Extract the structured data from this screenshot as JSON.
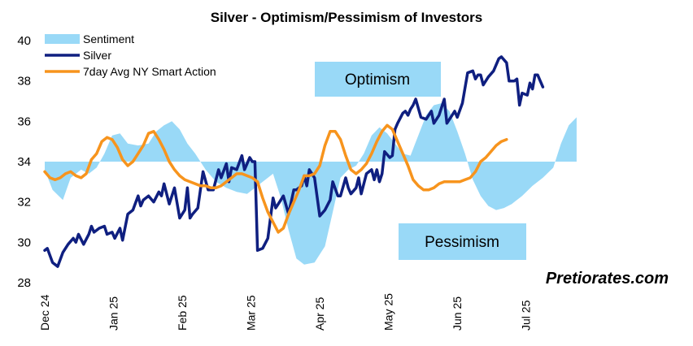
{
  "chart_data": {
    "type": "line",
    "title": "Silver - Optimism/Pessimism of Investors",
    "ylim": [
      28,
      40
    ],
    "y_ticks": [
      28,
      30,
      32,
      34,
      36,
      38,
      40
    ],
    "baseline": 34,
    "x_range": [
      0,
      232
    ],
    "x_ticks": [
      {
        "label": "Dec 24",
        "x": 0
      },
      {
        "label": "Jan 25",
        "x": 26.5
      },
      {
        "label": "Feb 25",
        "x": 53
      },
      {
        "label": "Mar 25",
        "x": 79.5
      },
      {
        "label": "Apr 25",
        "x": 106
      },
      {
        "label": "May 25",
        "x": 132.5
      },
      {
        "label": "Jun 25",
        "x": 159
      },
      {
        "label": "Jul 25",
        "x": 185.5
      }
    ],
    "legend": [
      "Sentiment",
      "Silver",
      "7day Avg NY Smart Action"
    ],
    "colors": {
      "sentiment": "#99D9F7",
      "silver": "#0F1F80",
      "smart": "#F7941D",
      "box": "#99D9F7"
    },
    "annotations": {
      "optimism": "Optimism",
      "pessimism": "Pessimism"
    },
    "watermark": "Pretiorates.com",
    "series": [
      {
        "name": "Sentiment",
        "kind": "area",
        "points": [
          [
            0,
            33.6
          ],
          [
            3,
            32.6
          ],
          [
            7,
            32.1
          ],
          [
            10,
            33.2
          ],
          [
            14,
            33.6
          ],
          [
            17,
            33.4
          ],
          [
            20,
            33.7
          ],
          [
            23,
            34.4
          ],
          [
            26,
            35.3
          ],
          [
            29,
            35.4
          ],
          [
            32,
            34.9
          ],
          [
            36,
            34.8
          ],
          [
            40,
            34.9
          ],
          [
            43,
            35.5
          ],
          [
            46,
            35.8
          ],
          [
            49,
            36.0
          ],
          [
            52,
            35.6
          ],
          [
            55,
            34.9
          ],
          [
            58,
            34.4
          ],
          [
            62,
            33.6
          ],
          [
            66,
            33.0
          ],
          [
            70,
            32.7
          ],
          [
            74,
            32.5
          ],
          [
            78,
            32.4
          ],
          [
            82,
            32.8
          ],
          [
            86,
            33.2
          ],
          [
            88,
            33.4
          ],
          [
            91,
            32.2
          ],
          [
            94,
            30.6
          ],
          [
            97,
            29.2
          ],
          [
            100,
            28.9
          ],
          [
            104,
            29.0
          ],
          [
            108,
            29.8
          ],
          [
            111,
            31.5
          ],
          [
            114,
            33.2
          ],
          [
            117,
            33.6
          ],
          [
            120,
            33.8
          ],
          [
            123,
            34.4
          ],
          [
            126,
            35.3
          ],
          [
            129,
            35.7
          ],
          [
            132,
            35.4
          ],
          [
            135,
            34.9
          ],
          [
            138,
            34.4
          ],
          [
            141,
            34.3
          ],
          [
            144,
            35.3
          ],
          [
            147,
            36.3
          ],
          [
            150,
            36.8
          ],
          [
            153,
            36.9
          ],
          [
            156,
            36.5
          ],
          [
            159,
            35.5
          ],
          [
            162,
            34.4
          ],
          [
            165,
            33.1
          ],
          [
            168,
            32.3
          ],
          [
            171,
            31.8
          ],
          [
            174,
            31.6
          ],
          [
            177,
            31.7
          ],
          [
            180,
            31.9
          ],
          [
            184,
            32.3
          ],
          [
            188,
            32.8
          ],
          [
            192,
            33.2
          ],
          [
            196,
            33.7
          ],
          [
            199,
            34.9
          ],
          [
            202,
            35.8
          ],
          [
            205,
            36.2
          ]
        ]
      },
      {
        "name": "Silver",
        "kind": "line",
        "points": [
          [
            0,
            29.6
          ],
          [
            1,
            29.7
          ],
          [
            3,
            29.0
          ],
          [
            5,
            28.8
          ],
          [
            7,
            29.5
          ],
          [
            9,
            29.9
          ],
          [
            11,
            30.2
          ],
          [
            12,
            30.0
          ],
          [
            13,
            30.4
          ],
          [
            15,
            29.9
          ],
          [
            17,
            30.4
          ],
          [
            18,
            30.8
          ],
          [
            19,
            30.5
          ],
          [
            21,
            30.7
          ],
          [
            23,
            30.8
          ],
          [
            24,
            30.4
          ],
          [
            26,
            30.5
          ],
          [
            27,
            30.2
          ],
          [
            29,
            30.7
          ],
          [
            30,
            30.1
          ],
          [
            32,
            31.4
          ],
          [
            34,
            31.6
          ],
          [
            36,
            32.3
          ],
          [
            37,
            31.8
          ],
          [
            38,
            32.1
          ],
          [
            40,
            32.3
          ],
          [
            42,
            32.0
          ],
          [
            44,
            32.5
          ],
          [
            45,
            32.3
          ],
          [
            46,
            32.9
          ],
          [
            48,
            31.9
          ],
          [
            50,
            32.7
          ],
          [
            52,
            31.2
          ],
          [
            54,
            31.6
          ],
          [
            55,
            32.7
          ],
          [
            56,
            31.2
          ],
          [
            57,
            31.4
          ],
          [
            59,
            31.7
          ],
          [
            61,
            33.5
          ],
          [
            63,
            32.6
          ],
          [
            65,
            32.6
          ],
          [
            67,
            33.6
          ],
          [
            68,
            33.2
          ],
          [
            70,
            33.9
          ],
          [
            71,
            33.0
          ],
          [
            72,
            33.7
          ],
          [
            74,
            33.6
          ],
          [
            76,
            34.3
          ],
          [
            77,
            33.6
          ],
          [
            79,
            34.2
          ],
          [
            80,
            34.0
          ],
          [
            81,
            34.0
          ],
          [
            82,
            29.6
          ],
          [
            84,
            29.7
          ],
          [
            86,
            30.2
          ],
          [
            88,
            32.2
          ],
          [
            89,
            31.7
          ],
          [
            90,
            31.9
          ],
          [
            92,
            32.3
          ],
          [
            94,
            31.4
          ],
          [
            96,
            32.6
          ],
          [
            97,
            32.6
          ],
          [
            99,
            32.8
          ],
          [
            100,
            33.3
          ],
          [
            101,
            32.8
          ],
          [
            102,
            33.6
          ],
          [
            104,
            33.2
          ],
          [
            106,
            31.3
          ],
          [
            108,
            31.6
          ],
          [
            110,
            32.1
          ],
          [
            111,
            33.0
          ],
          [
            113,
            32.3
          ],
          [
            114,
            32.3
          ],
          [
            116,
            33.2
          ],
          [
            117,
            32.7
          ],
          [
            118,
            32.4
          ],
          [
            120,
            32.7
          ],
          [
            121,
            33.2
          ],
          [
            122,
            32.4
          ],
          [
            124,
            33.4
          ],
          [
            125,
            33.5
          ],
          [
            126,
            33.6
          ],
          [
            127,
            33.1
          ],
          [
            128,
            33.6
          ],
          [
            129,
            33.0
          ],
          [
            130,
            33.4
          ],
          [
            131,
            34.5
          ],
          [
            133,
            34.2
          ],
          [
            134,
            34.3
          ],
          [
            135,
            35.6
          ],
          [
            136,
            35.9
          ],
          [
            138,
            36.4
          ],
          [
            139,
            36.5
          ],
          [
            140,
            36.3
          ],
          [
            141,
            36.6
          ],
          [
            142,
            36.8
          ],
          [
            143,
            37.1
          ],
          [
            145,
            36.2
          ],
          [
            147,
            36.1
          ],
          [
            149,
            36.5
          ],
          [
            150,
            35.9
          ],
          [
            152,
            36.3
          ],
          [
            154,
            37.1
          ],
          [
            155,
            35.9
          ],
          [
            157,
            36.3
          ],
          [
            158,
            36.5
          ],
          [
            159,
            36.2
          ],
          [
            161,
            36.9
          ],
          [
            163,
            38.4
          ],
          [
            165,
            38.5
          ],
          [
            166,
            38.1
          ],
          [
            167,
            38.3
          ],
          [
            168,
            38.3
          ],
          [
            169,
            37.8
          ],
          [
            171,
            38.2
          ],
          [
            173,
            38.5
          ],
          [
            175,
            39.1
          ],
          [
            176,
            39.2
          ],
          [
            178,
            38.9
          ],
          [
            179,
            38.0
          ],
          [
            181,
            38.0
          ],
          [
            182,
            38.1
          ],
          [
            183,
            36.8
          ],
          [
            184,
            37.4
          ],
          [
            186,
            37.3
          ],
          [
            187,
            37.9
          ],
          [
            188,
            37.6
          ],
          [
            189,
            38.3
          ],
          [
            190,
            38.3
          ],
          [
            191,
            38.0
          ],
          [
            192,
            37.7
          ]
        ]
      },
      {
        "name": "7day Avg NY Smart Action",
        "kind": "line",
        "points": [
          [
            0,
            33.5
          ],
          [
            2,
            33.2
          ],
          [
            4,
            33.1
          ],
          [
            6,
            33.2
          ],
          [
            8,
            33.4
          ],
          [
            10,
            33.5
          ],
          [
            12,
            33.3
          ],
          [
            14,
            33.2
          ],
          [
            16,
            33.4
          ],
          [
            18,
            34.1
          ],
          [
            20,
            34.4
          ],
          [
            22,
            35.0
          ],
          [
            24,
            35.2
          ],
          [
            26,
            35.1
          ],
          [
            28,
            34.7
          ],
          [
            30,
            34.1
          ],
          [
            32,
            33.8
          ],
          [
            34,
            34.0
          ],
          [
            36,
            34.4
          ],
          [
            38,
            34.8
          ],
          [
            40,
            35.4
          ],
          [
            42,
            35.5
          ],
          [
            44,
            35.1
          ],
          [
            46,
            34.6
          ],
          [
            48,
            34.0
          ],
          [
            50,
            33.6
          ],
          [
            52,
            33.3
          ],
          [
            54,
            33.1
          ],
          [
            56,
            33.0
          ],
          [
            58,
            32.9
          ],
          [
            60,
            32.8
          ],
          [
            62,
            32.8
          ],
          [
            64,
            32.7
          ],
          [
            66,
            32.7
          ],
          [
            68,
            32.8
          ],
          [
            70,
            33.0
          ],
          [
            72,
            33.2
          ],
          [
            74,
            33.4
          ],
          [
            76,
            33.4
          ],
          [
            78,
            33.3
          ],
          [
            80,
            33.2
          ],
          [
            82,
            33.0
          ],
          [
            84,
            32.2
          ],
          [
            86,
            31.5
          ],
          [
            88,
            31.0
          ],
          [
            90,
            30.5
          ],
          [
            92,
            30.7
          ],
          [
            94,
            31.4
          ],
          [
            96,
            32.0
          ],
          [
            98,
            32.6
          ],
          [
            100,
            33.3
          ],
          [
            102,
            33.3
          ],
          [
            104,
            33.4
          ],
          [
            106,
            33.8
          ],
          [
            108,
            34.8
          ],
          [
            110,
            35.5
          ],
          [
            112,
            35.5
          ],
          [
            114,
            35.1
          ],
          [
            116,
            34.3
          ],
          [
            118,
            33.6
          ],
          [
            120,
            33.4
          ],
          [
            122,
            33.6
          ],
          [
            124,
            33.9
          ],
          [
            126,
            34.4
          ],
          [
            128,
            35.0
          ],
          [
            130,
            35.5
          ],
          [
            132,
            35.8
          ],
          [
            134,
            35.6
          ],
          [
            136,
            35.0
          ],
          [
            138,
            34.4
          ],
          [
            140,
            33.8
          ],
          [
            142,
            33.1
          ],
          [
            144,
            32.8
          ],
          [
            146,
            32.6
          ],
          [
            148,
            32.6
          ],
          [
            150,
            32.7
          ],
          [
            152,
            32.9
          ],
          [
            154,
            33.0
          ],
          [
            156,
            33.0
          ],
          [
            158,
            33.0
          ],
          [
            160,
            33.0
          ],
          [
            162,
            33.1
          ],
          [
            164,
            33.2
          ],
          [
            166,
            33.5
          ],
          [
            168,
            34.0
          ],
          [
            170,
            34.2
          ],
          [
            172,
            34.5
          ],
          [
            174,
            34.8
          ],
          [
            176,
            35.0
          ],
          [
            178,
            35.1
          ]
        ]
      }
    ]
  }
}
